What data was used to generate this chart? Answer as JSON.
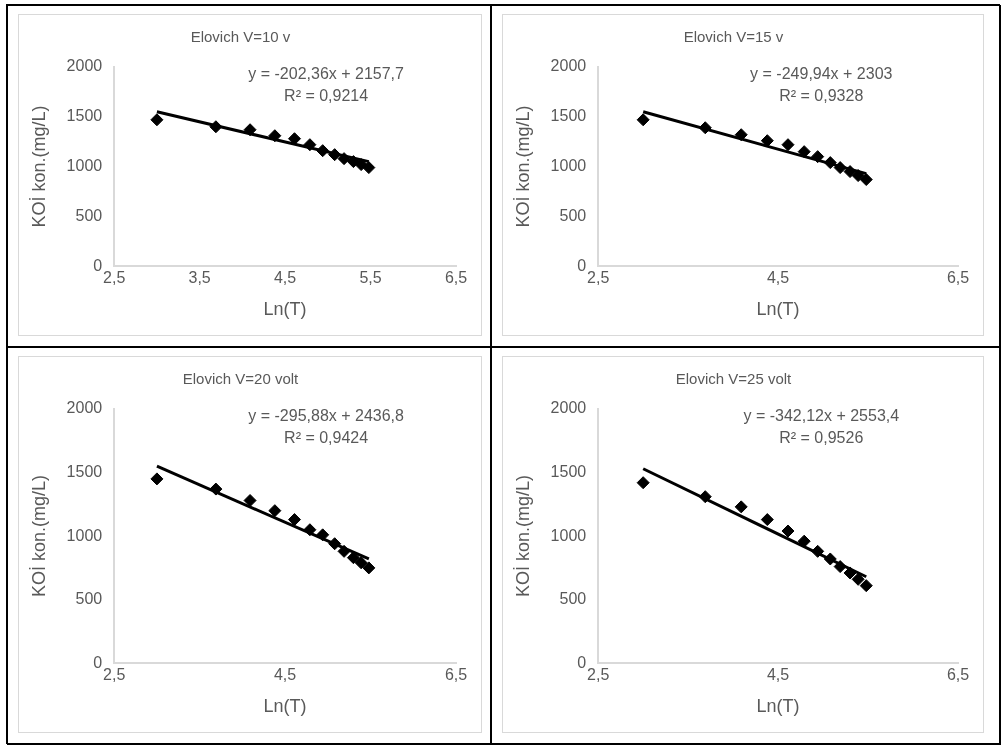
{
  "chart_data": [
    {
      "type": "scatter",
      "title": "Elovich V=10 v",
      "xlabel": "Ln(T)",
      "ylabel": "KOİ kon.(mg/L)",
      "xlim": [
        2.5,
        6.5
      ],
      "xticks": [
        {
          "value": 2.5,
          "label": "2,5"
        },
        {
          "value": 3.5,
          "label": "3,5"
        },
        {
          "value": 4.5,
          "label": "4,5"
        },
        {
          "value": 5.5,
          "label": "5,5"
        },
        {
          "value": 6.5,
          "label": "6,5"
        }
      ],
      "ylim": [
        0,
        2000
      ],
      "yticks": [
        0,
        500,
        1000,
        1500,
        2000
      ],
      "grid": false,
      "legend": false,
      "annotations": [
        "y = -202,36x + 2157,7",
        "R² = 0,9214"
      ],
      "series": [
        {
          "marker": "diamond",
          "color": "#000000",
          "x": [
            3.0,
            3.69,
            4.09,
            4.38,
            4.61,
            4.79,
            4.94,
            5.08,
            5.19,
            5.3,
            5.39,
            5.48
          ],
          "values": [
            1470,
            1400,
            1370,
            1310,
            1280,
            1220,
            1160,
            1120,
            1080,
            1050,
            1020,
            990
          ]
        },
        {
          "type": "line",
          "color": "#000000",
          "x": [
            3.0,
            5.48
          ],
          "values": [
            1550,
            1050
          ]
        }
      ]
    },
    {
      "type": "scatter",
      "title": "Elovich V=15 v",
      "xlabel": "Ln(T)",
      "ylabel": "KOİ kon.(mg/L)",
      "xlim": [
        2.5,
        6.5
      ],
      "xticks": [
        {
          "value": 2.5,
          "label": "2,5"
        },
        {
          "value": 4.5,
          "label": "4,5"
        },
        {
          "value": 6.5,
          "label": "6,5"
        }
      ],
      "ylim": [
        0,
        2000
      ],
      "yticks": [
        0,
        500,
        1000,
        1500,
        2000
      ],
      "grid": false,
      "legend": false,
      "annotations": [
        "y = -249,94x + 2303",
        "R² = 0,9328"
      ],
      "series": [
        {
          "marker": "diamond",
          "color": "#000000",
          "x": [
            3.0,
            3.69,
            4.09,
            4.38,
            4.61,
            4.79,
            4.94,
            5.08,
            5.19,
            5.3,
            5.39,
            5.48
          ],
          "values": [
            1470,
            1390,
            1320,
            1260,
            1220,
            1150,
            1100,
            1040,
            990,
            950,
            910,
            870
          ]
        },
        {
          "type": "line",
          "color": "#000000",
          "x": [
            3.0,
            5.48
          ],
          "values": [
            1550,
            930
          ]
        }
      ]
    },
    {
      "type": "scatter",
      "title": "Elovich V=20 volt",
      "xlabel": "Ln(T)",
      "ylabel": "KOİ kon.(mg/L)",
      "xlim": [
        2.5,
        6.5
      ],
      "xticks": [
        {
          "value": 2.5,
          "label": "2,5"
        },
        {
          "value": 4.5,
          "label": "4,5"
        },
        {
          "value": 6.5,
          "label": "6,5"
        }
      ],
      "ylim": [
        0,
        2000
      ],
      "yticks": [
        0,
        500,
        1000,
        1500,
        2000
      ],
      "grid": false,
      "legend": false,
      "annotations": [
        "y = -295,88x + 2436,8",
        "R² = 0,9424"
      ],
      "series": [
        {
          "marker": "diamond",
          "color": "#000000",
          "x": [
            3.0,
            3.69,
            4.09,
            4.38,
            4.61,
            4.79,
            4.94,
            5.08,
            5.19,
            5.3,
            5.39,
            5.48
          ],
          "values": [
            1450,
            1370,
            1280,
            1200,
            1130,
            1050,
            1010,
            940,
            880,
            830,
            790,
            750
          ]
        },
        {
          "type": "line",
          "color": "#000000",
          "x": [
            3.0,
            5.48
          ],
          "values": [
            1550,
            820
          ]
        }
      ]
    },
    {
      "type": "scatter",
      "title": "Elovich V=25 volt",
      "xlabel": "Ln(T)",
      "ylabel": "KOİ kon.(mg/L)",
      "xlim": [
        2.5,
        6.5
      ],
      "xticks": [
        {
          "value": 2.5,
          "label": "2,5"
        },
        {
          "value": 4.5,
          "label": "4,5"
        },
        {
          "value": 6.5,
          "label": "6,5"
        }
      ],
      "ylim": [
        0,
        2000
      ],
      "yticks": [
        0,
        500,
        1000,
        1500,
        2000
      ],
      "grid": false,
      "legend": false,
      "annotations": [
        "y = -342,12x + 2553,4",
        "R² = 0,9526"
      ],
      "series": [
        {
          "marker": "diamond",
          "color": "#000000",
          "x": [
            3.0,
            3.69,
            4.09,
            4.38,
            4.61,
            4.79,
            4.94,
            5.08,
            5.19,
            5.3,
            5.39,
            5.48
          ],
          "values": [
            1420,
            1310,
            1230,
            1130,
            1040,
            960,
            880,
            820,
            760,
            710,
            660,
            610
          ]
        },
        {
          "type": "line",
          "color": "#000000",
          "x": [
            3.0,
            5.48
          ],
          "values": [
            1530,
            680
          ]
        }
      ]
    }
  ]
}
